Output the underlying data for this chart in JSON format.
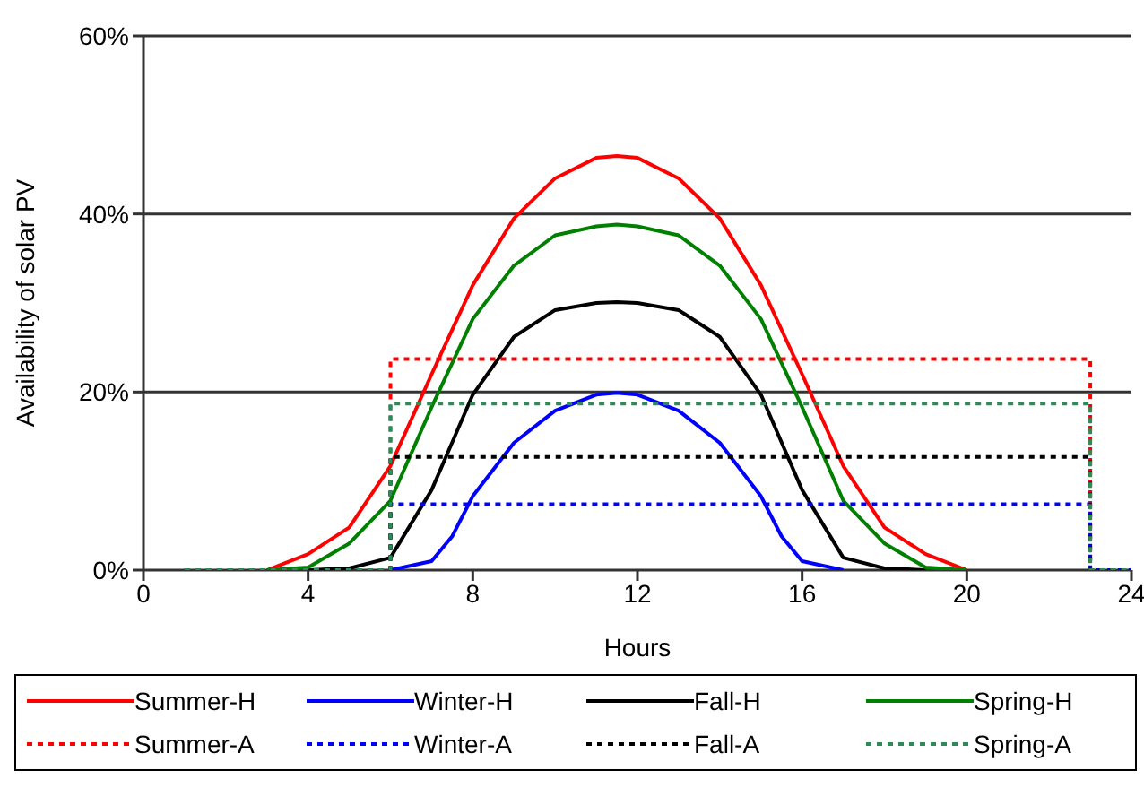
{
  "chart_data": {
    "type": "line",
    "xlabel": "Hours",
    "ylabel": "Availability of solar PV",
    "xlim": [
      0,
      24
    ],
    "xticks": [
      0,
      4,
      8,
      12,
      16,
      20,
      24
    ],
    "ylim": [
      0,
      60
    ],
    "yticks": [
      {
        "value": 0,
        "label": "0%"
      },
      {
        "value": 20,
        "label": "20%"
      },
      {
        "value": 40,
        "label": "40%"
      },
      {
        "value": 60,
        "label": "60%"
      }
    ],
    "grid": "y",
    "legend": "bottom",
    "marker": "none",
    "series": [
      {
        "name": "Summer-H",
        "color": "#ff0000",
        "line_style": "solid",
        "x": [
          3,
          4,
          5,
          6,
          7,
          8,
          9,
          10,
          11,
          11.5,
          12,
          13,
          14,
          15,
          16,
          17,
          18,
          19,
          20
        ],
        "values": [
          0,
          1.8,
          4.8,
          11.7,
          22,
          32,
          39.5,
          44,
          46.3,
          46.5,
          46.3,
          44,
          39.5,
          32,
          22,
          11.7,
          4.8,
          1.8,
          0
        ]
      },
      {
        "name": "Winter-H",
        "color": "#0000ff",
        "line_style": "solid",
        "x": [
          6,
          7,
          7.5,
          8,
          9,
          10,
          11,
          11.5,
          12,
          13,
          14,
          15,
          15.5,
          16,
          17
        ],
        "values": [
          0,
          1,
          3.8,
          8.3,
          14.3,
          17.9,
          19.7,
          19.9,
          19.7,
          17.9,
          14.3,
          8.3,
          3.8,
          1,
          0
        ]
      },
      {
        "name": "Fall-H",
        "color": "#000000",
        "line_style": "solid",
        "x": [
          4,
          5,
          6,
          7,
          8,
          9,
          10,
          11,
          11.5,
          12,
          13,
          14,
          15,
          16,
          17,
          18,
          19
        ],
        "values": [
          0,
          0.2,
          1.4,
          9,
          19.7,
          26.2,
          29.2,
          30,
          30.1,
          30,
          29.2,
          26.2,
          19.7,
          9,
          1.4,
          0.2,
          0
        ]
      },
      {
        "name": "Spring-H",
        "color": "#008000",
        "line_style": "solid",
        "x": [
          3,
          4,
          5,
          6,
          7,
          8,
          9,
          10,
          11,
          11.5,
          12,
          13,
          14,
          15,
          16,
          17,
          18,
          19,
          20
        ],
        "values": [
          0,
          0.3,
          3,
          7.8,
          18.3,
          28.2,
          34.2,
          37.6,
          38.6,
          38.8,
          38.6,
          37.6,
          34.2,
          28.2,
          18.3,
          7.8,
          3,
          0.3,
          0
        ]
      },
      {
        "name": "Summer-A",
        "type": "step",
        "color": "#ff0000",
        "line_style": "dotted",
        "x": [
          1,
          6,
          23,
          24
        ],
        "values": [
          0,
          23.7,
          0,
          0
        ]
      },
      {
        "name": "Winter-A",
        "type": "step",
        "color": "#0000ff",
        "line_style": "dotted",
        "x": [
          1,
          6,
          23,
          24
        ],
        "values": [
          0,
          7.4,
          0,
          0
        ]
      },
      {
        "name": "Fall-A",
        "type": "step",
        "color": "#000000",
        "line_style": "dotted",
        "x": [
          1,
          6,
          23,
          24
        ],
        "values": [
          0,
          12.7,
          0,
          0
        ]
      },
      {
        "name": "Spring-A",
        "type": "step",
        "color": "#2e8b57",
        "line_style": "dotted",
        "x": [
          1,
          6,
          23,
          24
        ],
        "values": [
          0,
          18.7,
          0,
          0
        ]
      }
    ]
  }
}
